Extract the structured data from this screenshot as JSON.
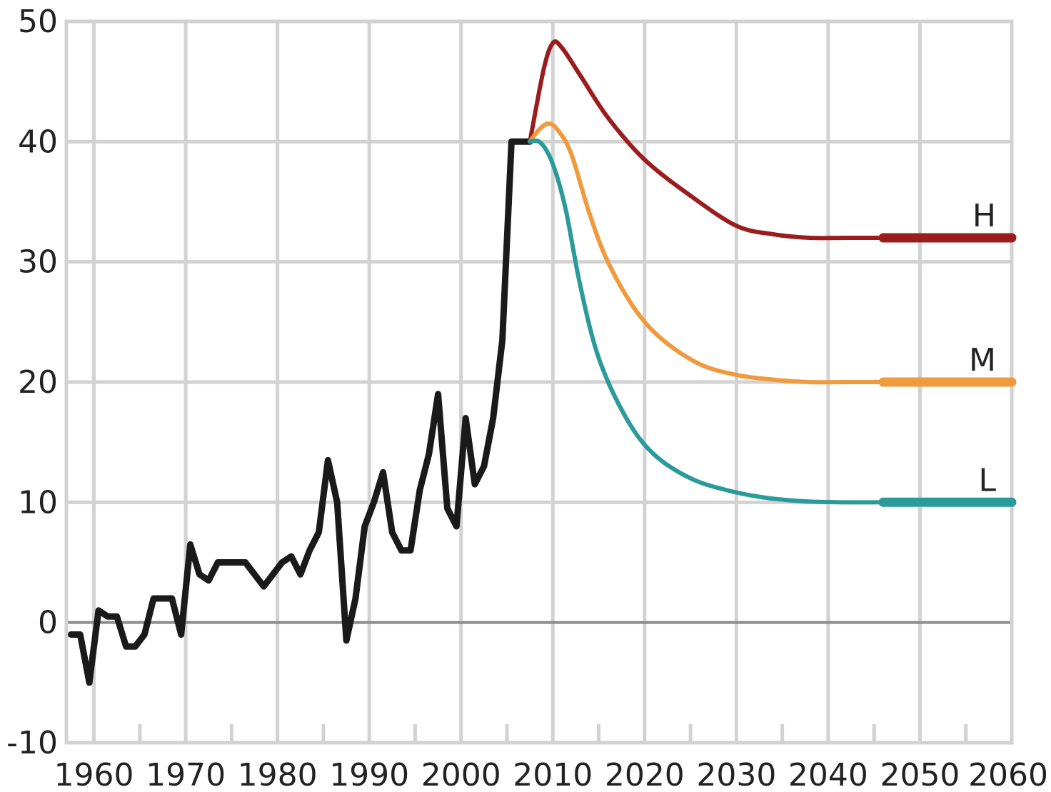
{
  "chart_data": {
    "type": "line",
    "title": "",
    "xlabel": "",
    "ylabel": "",
    "xlim": [
      1957,
      2060
    ],
    "ylim": [
      -10,
      50
    ],
    "x_ticks": [
      1960,
      1970,
      1980,
      1990,
      2000,
      2010,
      2020,
      2030,
      2040,
      2050,
      2060
    ],
    "x_tick_labels": [
      "1960",
      "1970",
      "1980",
      "1990",
      "2000",
      "2010",
      "2020",
      "2030",
      "2040",
      "2050",
      "2060"
    ],
    "y_ticks": [
      -10,
      0,
      10,
      20,
      30,
      40,
      50
    ],
    "y_tick_labels": [
      "-10",
      "0",
      "10",
      "20",
      "30",
      "40",
      "50"
    ],
    "grid": true,
    "series": [
      {
        "color": "#1a1a1a",
        "x": [
          1957.5,
          1958.5,
          1959.5,
          1960.5,
          1961.5,
          1962.5,
          1963.5,
          1964.5,
          1965.5,
          1966.5,
          1967.5,
          1968.5,
          1969.5,
          1970.5,
          1971.5,
          1972.5,
          1973.5,
          1974.5,
          1975.5,
          1976.5,
          1977.5,
          1978.5,
          1979.5,
          1980.5,
          1981.5,
          1982.5,
          1983.5,
          1984.5,
          1985.5,
          1986.5,
          1987.5,
          1988.5,
          1989.5,
          1990.5,
          1991.5,
          1992.5,
          1993.5,
          1994.5,
          1995.5,
          1996.5,
          1997.5,
          1998.5,
          1999.5,
          2000.5,
          2001.5,
          2002.5,
          2003.5,
          2004.5,
          2005.5,
          2006.5,
          2007.5
        ],
        "values": [
          -1,
          -1,
          -5,
          1,
          0.5,
          0.5,
          -2,
          -2,
          -1,
          2,
          2,
          2,
          -1,
          6.5,
          4,
          3.5,
          5,
          5,
          5,
          5,
          4,
          3,
          4,
          5,
          5.5,
          4,
          6,
          7.5,
          13.5,
          10,
          -1.5,
          2,
          8,
          10,
          12.5,
          7.5,
          6,
          6,
          11,
          14,
          19,
          9.5,
          8,
          17,
          11.5,
          13,
          17,
          23.5,
          40,
          40,
          40
        ]
      },
      {
        "name": "H",
        "color": "#9b1c1c",
        "x": [
          2007.5,
          2009,
          2010,
          2011,
          2013,
          2016,
          2020,
          2025,
          2030,
          2034,
          2038,
          2042,
          2046,
          2050,
          2054,
          2060
        ],
        "values": [
          40,
          46,
          48.2,
          47.8,
          45.5,
          42,
          38.5,
          35.5,
          33,
          32.3,
          32,
          32,
          32,
          32,
          32,
          32
        ]
      },
      {
        "name": "M",
        "color": "#f09a3e",
        "x": [
          2007.5,
          2008.5,
          2009.5,
          2010.5,
          2012,
          2014,
          2016,
          2019,
          2022,
          2026,
          2030,
          2034,
          2038,
          2042,
          2046,
          2050,
          2054,
          2060
        ],
        "values": [
          40,
          41,
          41.5,
          41,
          39,
          34,
          30,
          26,
          23.5,
          21.5,
          20.6,
          20.2,
          20,
          20,
          20,
          20,
          20,
          20
        ]
      },
      {
        "name": "L",
        "color": "#2a9a9a",
        "x": [
          2007.5,
          2008.5,
          2009.5,
          2010.5,
          2011.5,
          2013,
          2015,
          2018,
          2021,
          2025,
          2029,
          2033,
          2037,
          2041,
          2046,
          2050,
          2054,
          2060
        ],
        "values": [
          40,
          40,
          39,
          37,
          34,
          28,
          22,
          17,
          14,
          12,
          11,
          10.4,
          10.1,
          10,
          10,
          10,
          10,
          10
        ]
      }
    ]
  }
}
